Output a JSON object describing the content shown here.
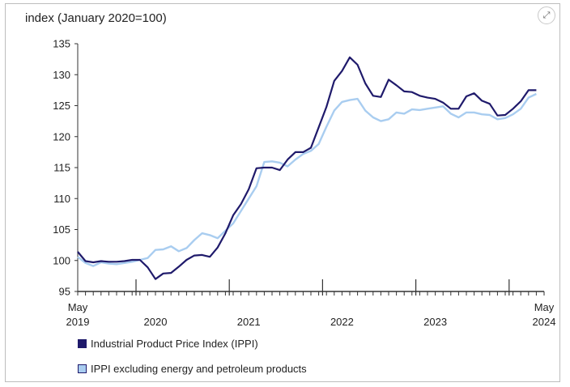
{
  "chart_data": {
    "type": "line",
    "ylabel": "index (January 2020=100)",
    "ylim": [
      95,
      135
    ],
    "yticks": [
      95,
      100,
      105,
      110,
      115,
      120,
      125,
      130,
      135
    ],
    "xlim": [
      0,
      60
    ],
    "xtick_labels": [
      {
        "x": 0,
        "top": "May",
        "bottom": "2019"
      },
      {
        "x": 10,
        "top": "",
        "bottom": "2020"
      },
      {
        "x": 22,
        "top": "",
        "bottom": "2021"
      },
      {
        "x": 34,
        "top": "",
        "bottom": "2022"
      },
      {
        "x": 46,
        "top": "",
        "bottom": "2023"
      },
      {
        "x": 60,
        "top": "May",
        "bottom": "2024"
      }
    ],
    "year_boundaries": [
      7.5,
      19.5,
      31.5,
      43.5,
      55.5
    ],
    "legend_position": "bottom",
    "series": [
      {
        "name": "Industrial Product Price Index (IPPI)",
        "color": "#1f1a6b",
        "values": [
          101.4,
          99.9,
          99.7,
          99.9,
          99.8,
          99.8,
          99.9,
          100.1,
          100.1,
          98.9,
          97.0,
          97.9,
          98.0,
          99.0,
          100.1,
          100.8,
          100.9,
          100.6,
          102.1,
          104.4,
          107.3,
          109.1,
          111.5,
          114.9,
          115.0,
          115.0,
          114.6,
          116.3,
          117.5,
          117.5,
          118.2,
          121.5,
          124.8,
          129.0,
          130.6,
          132.8,
          131.6,
          128.6,
          126.6,
          126.4,
          129.2,
          128.3,
          127.3,
          127.2,
          126.6,
          126.3,
          126.1,
          125.5,
          124.5,
          124.5,
          126.5,
          127.0,
          125.8,
          125.3,
          123.4,
          123.5,
          124.5,
          125.7,
          127.5,
          127.5
        ]
      },
      {
        "name": "IPPI excluding energy and petroleum products",
        "color": "#a9cdf0",
        "values": [
          100.6,
          99.6,
          99.1,
          99.7,
          99.5,
          99.4,
          99.6,
          99.8,
          100.1,
          100.4,
          101.7,
          101.8,
          102.3,
          101.5,
          102.0,
          103.3,
          104.4,
          104.1,
          103.6,
          104.8,
          106.0,
          108.0,
          110.0,
          112.0,
          115.9,
          116.0,
          115.8,
          115.2,
          116.3,
          117.2,
          117.7,
          118.8,
          121.6,
          124.2,
          125.6,
          125.9,
          126.1,
          124.2,
          123.1,
          122.5,
          122.8,
          123.9,
          123.7,
          124.4,
          124.3,
          124.5,
          124.7,
          124.9,
          123.7,
          123.1,
          123.9,
          123.9,
          123.6,
          123.5,
          122.8,
          123.0,
          123.6,
          124.5,
          126.3,
          126.9
        ]
      }
    ]
  },
  "toolbar": {
    "expand_icon": "expand-icon",
    "expand_glyph": "⤢"
  }
}
